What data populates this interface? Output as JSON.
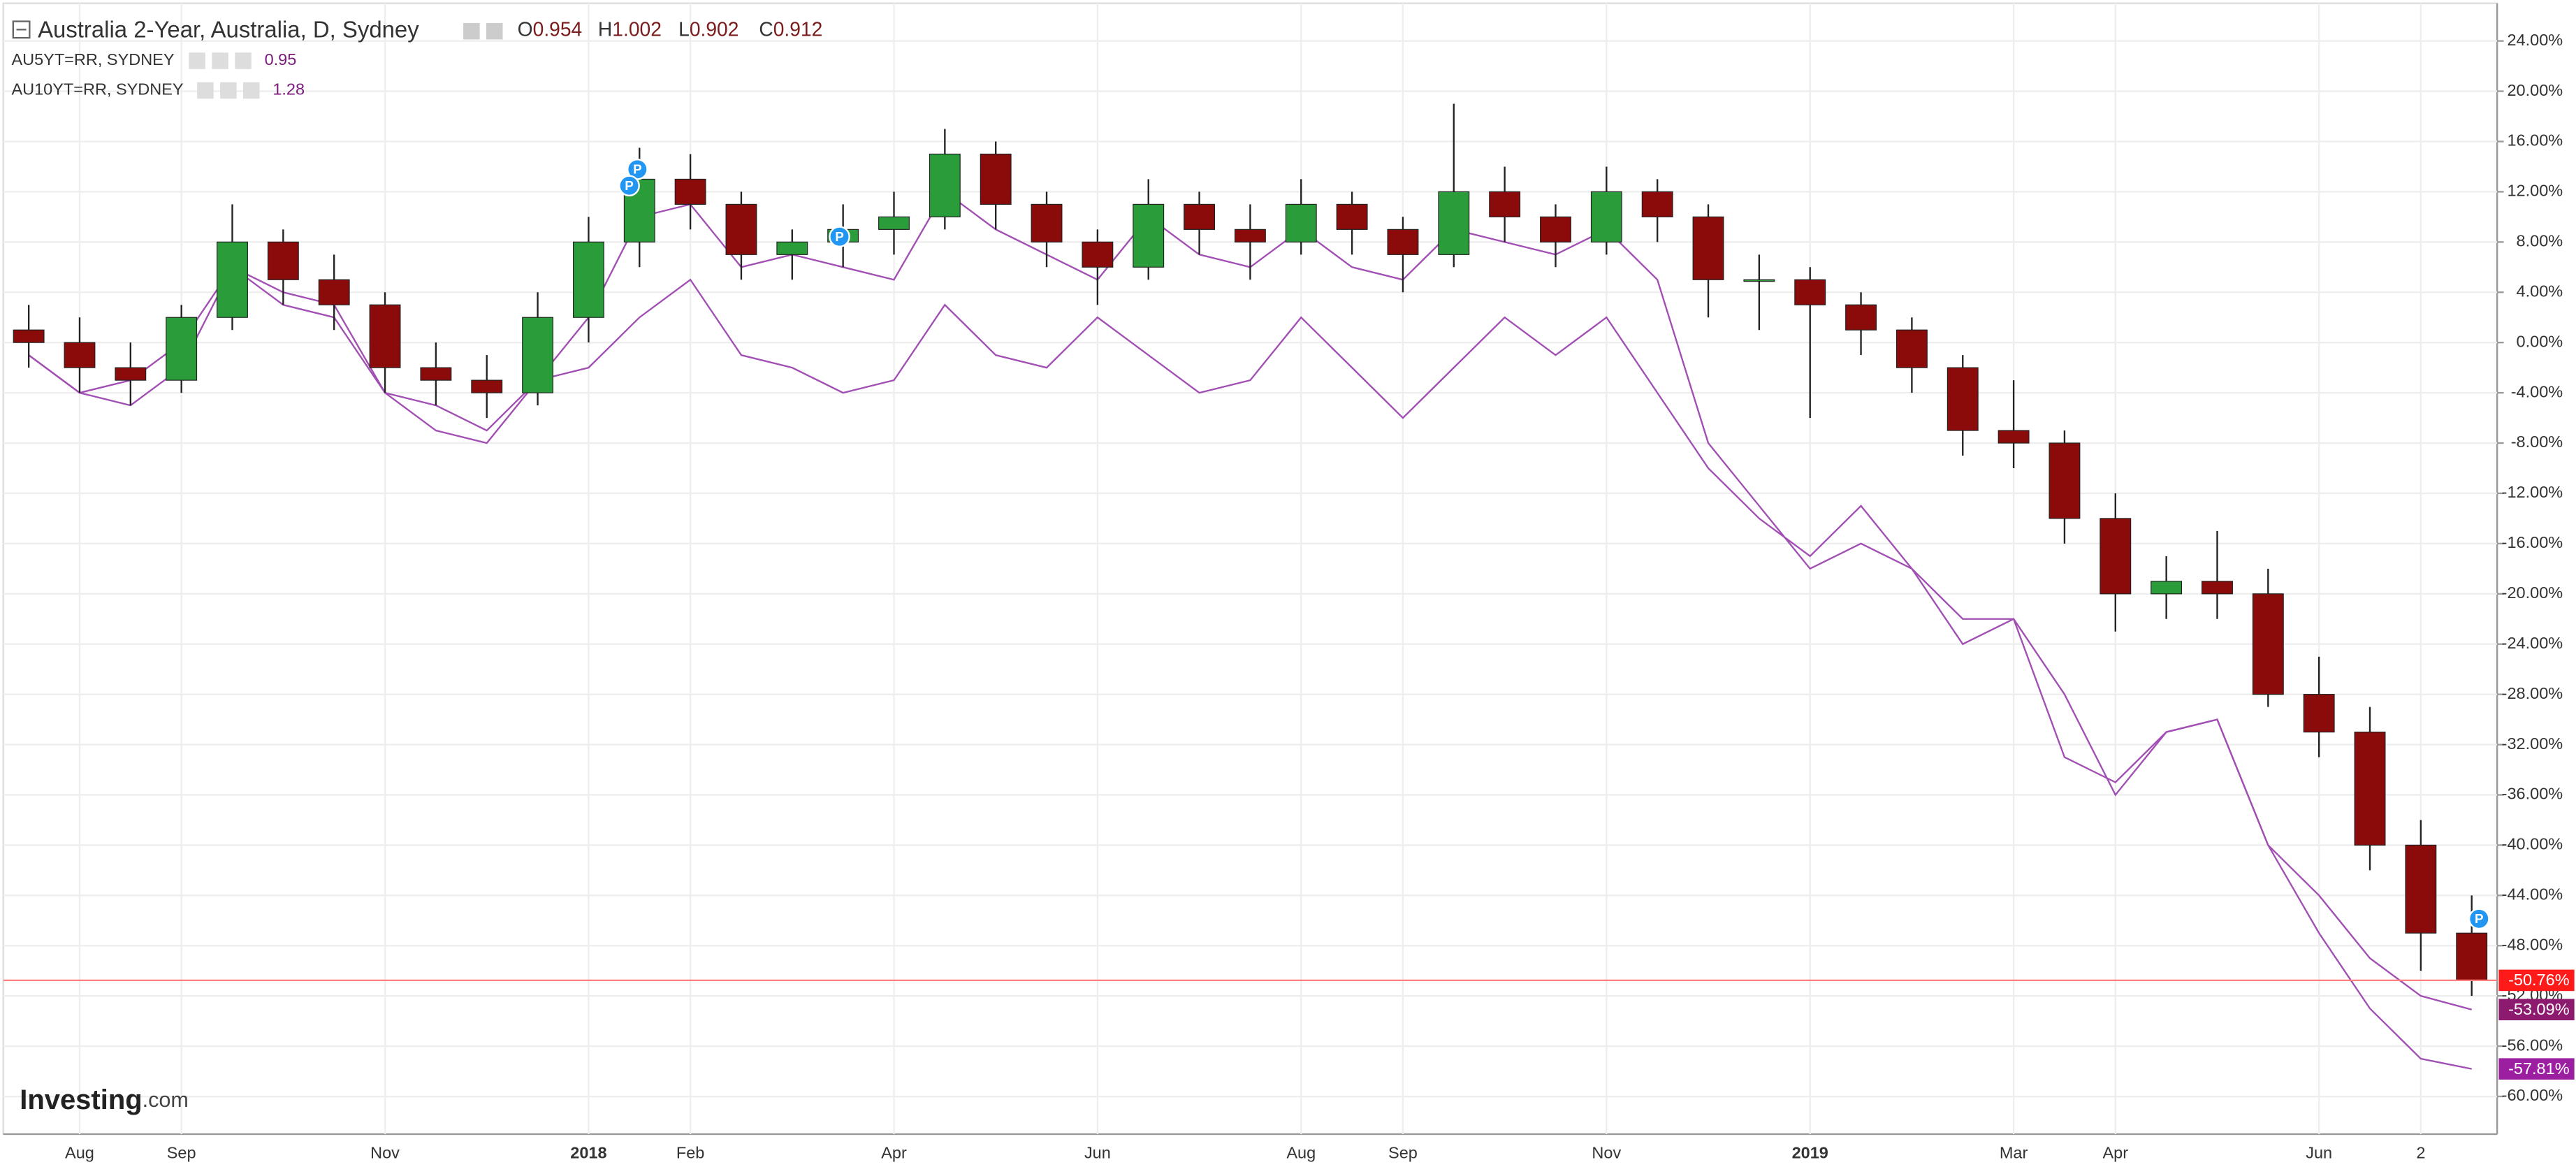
{
  "chart_data": {
    "type": "candlestick",
    "title": "Australia 2-Year, Australia, D, Sydney",
    "ohlc_readout": [
      {
        "label": "O",
        "value": 0.954
      },
      {
        "label": "H",
        "value": 1.002
      },
      {
        "label": "L",
        "value": 0.902
      },
      {
        "label": "C",
        "value": 0.912
      }
    ],
    "categories": [
      null,
      "Aug",
      null,
      "Sep",
      null,
      null,
      null,
      "Nov",
      null,
      null,
      null,
      "2018",
      null,
      "Feb",
      null,
      null,
      null,
      "Apr",
      null,
      null,
      null,
      "Jun",
      null,
      null,
      null,
      "Aug",
      null,
      "Sep",
      null,
      null,
      null,
      "Nov",
      null,
      null,
      null,
      "2019",
      null,
      null,
      null,
      "Mar",
      null,
      "Apr",
      null,
      null,
      null,
      "Jun",
      null,
      "2",
      null
    ],
    "ohlc": {
      "up_color": "#2a9d3a",
      "down_color": "#8b0b0b",
      "open": [
        1,
        0,
        -2,
        -3,
        2,
        8,
        5,
        3,
        -2,
        -3,
        -4,
        2,
        8,
        13,
        11,
        7,
        8,
        9,
        10,
        15,
        11,
        8,
        6,
        11,
        9,
        8,
        11,
        9,
        7,
        12,
        10,
        8,
        12,
        10,
        5,
        5,
        3,
        1,
        -2,
        -7,
        -8,
        -14,
        -20,
        -19,
        -20,
        -28,
        -31,
        -40,
        -47
      ],
      "high": [
        3,
        2,
        0,
        3,
        11,
        9,
        7,
        4,
        0,
        -1,
        4,
        10,
        15.5,
        15,
        12,
        9,
        11,
        12,
        17,
        16,
        12,
        9,
        13,
        12,
        11,
        13,
        12,
        10,
        19,
        14,
        11,
        14,
        13,
        11,
        7,
        6,
        4,
        2,
        -1,
        -3,
        -7,
        -12,
        -17,
        -15,
        -18,
        -25,
        -29,
        -38,
        -44
      ],
      "low": [
        -2,
        -4,
        -5,
        -4,
        1,
        3,
        1,
        -4,
        -5,
        -6,
        -5,
        0,
        6,
        9,
        5,
        5,
        6,
        7,
        9,
        9,
        6,
        3,
        5,
        7,
        5,
        7,
        7,
        4,
        6,
        8,
        6,
        7,
        8,
        2,
        1,
        -6,
        -1,
        -4,
        -9,
        -10,
        -16,
        -23,
        -22,
        -22,
        -29,
        -33,
        -42,
        -50,
        -52
      ],
      "close": [
        0,
        -2,
        -3,
        2,
        8,
        5,
        3,
        -2,
        -3,
        -4,
        2,
        8,
        13,
        11,
        7,
        8,
        9,
        10,
        15,
        11,
        8,
        6,
        11,
        9,
        8,
        11,
        9,
        7,
        12,
        10,
        8,
        12,
        10,
        5,
        5,
        3,
        1,
        -2,
        -7,
        -8,
        -14,
        -20,
        -19,
        -20,
        -28,
        -31,
        -40,
        -47,
        -50.76
      ],
      "last_label": "-50.76%",
      "label_color": "#ff1a1a"
    },
    "series": [
      {
        "name": "AU5YT=RR, SYDNEY",
        "readout": 0.95,
        "color": "#a14fb3",
        "label_color": "#8c1a6e",
        "values": [
          -1,
          -4,
          -3,
          0,
          6,
          4,
          3,
          -4,
          -5,
          -7,
          -3,
          2,
          10,
          11,
          6,
          7,
          6,
          5,
          12,
          9,
          7,
          5,
          10,
          7,
          6,
          9,
          6,
          5,
          9,
          8,
          7,
          9,
          5,
          -8,
          -13,
          -18,
          -16,
          -18,
          -24,
          -22,
          -28,
          -36,
          -31,
          -30,
          -40,
          -44,
          -49,
          -52,
          -53.09
        ],
        "last_label": "-53.09%"
      },
      {
        "name": "AU10YT=RR, SYDNEY",
        "readout": 1.28,
        "color": "#a14fb3",
        "label_color": "#9b1fa0",
        "values": [
          -1,
          -4,
          -5,
          -2,
          6,
          3,
          2,
          -4,
          -7,
          -8,
          -3,
          -2,
          2,
          5,
          -1,
          -2,
          -4,
          -3,
          3,
          -1,
          -2,
          2,
          -1,
          -4,
          -3,
          2,
          -2,
          -6,
          -2,
          2,
          -1,
          2,
          -4,
          -10,
          -14,
          -17,
          -13,
          -18,
          -22,
          -22,
          -33,
          -35,
          -31,
          -30,
          -40,
          -47,
          -53,
          -57,
          -57.81
        ],
        "last_label": "-57.81%"
      }
    ],
    "ylim": [
      -63,
      27
    ],
    "yticks": [
      {
        "value": 24,
        "label": "24.00%"
      },
      {
        "value": 20,
        "label": "20.00%"
      },
      {
        "value": 16,
        "label": "16.00%"
      },
      {
        "value": 12,
        "label": "12.00%"
      },
      {
        "value": 8,
        "label": "8.00%"
      },
      {
        "value": 4,
        "label": "4.00%"
      },
      {
        "value": 0,
        "label": "0.00%"
      },
      {
        "value": -4,
        "label": "-4.00%"
      },
      {
        "value": -8,
        "label": "-8.00%"
      },
      {
        "value": -12,
        "label": "-12.00%"
      },
      {
        "value": -16,
        "label": "-16.00%"
      },
      {
        "value": -20,
        "label": "-20.00%"
      },
      {
        "value": -24,
        "label": "-24.00%"
      },
      {
        "value": -28,
        "label": "-28.00%"
      },
      {
        "value": -32,
        "label": "-32.00%"
      },
      {
        "value": -36,
        "label": "-36.00%"
      },
      {
        "value": -40,
        "label": "-40.00%"
      },
      {
        "value": -44,
        "label": "-44.00%"
      },
      {
        "value": -48,
        "label": "-48.00%"
      },
      {
        "value": -52,
        "label": "-52.00%"
      },
      {
        "value": -56,
        "label": "-56.00%"
      },
      {
        "value": -60,
        "label": "-60.00%"
      }
    ],
    "grid": true,
    "flag_label": "P",
    "logo": [
      "Investing",
      ".com"
    ]
  }
}
